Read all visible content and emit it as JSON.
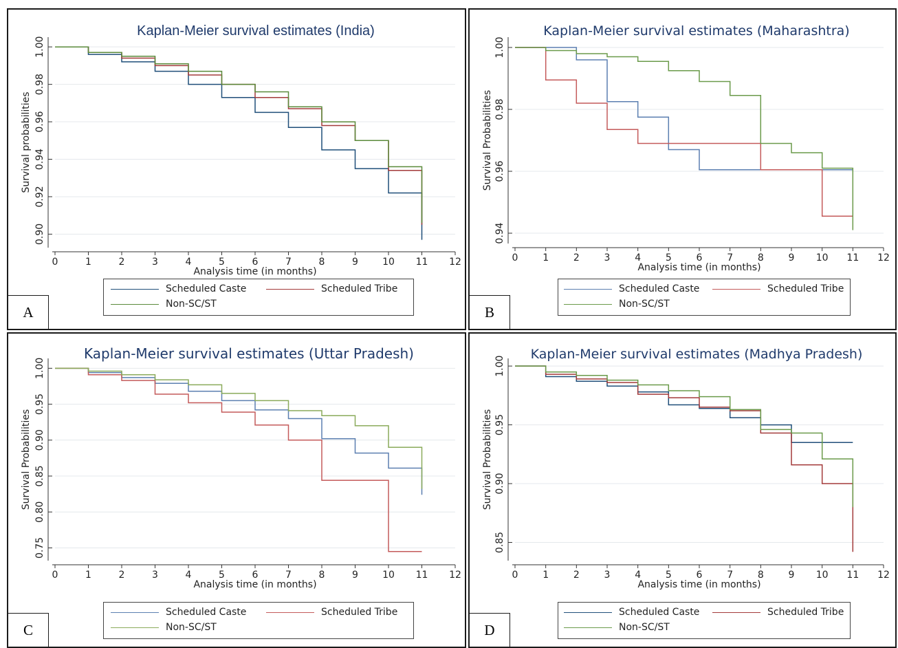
{
  "chart_data": [
    {
      "panel_label": "A",
      "type": "line",
      "title": "Kaplan-Meier survival estimates (India)",
      "xlabel": "Analysis time (in months)",
      "ylabel": "Survival probabilities",
      "xlim": [
        0,
        12
      ],
      "ylim": [
        0.895,
        1.003
      ],
      "xticks": [
        0,
        1,
        2,
        3,
        4,
        5,
        6,
        7,
        8,
        9,
        10,
        11,
        12
      ],
      "yticks": [
        0.9,
        0.92,
        0.94,
        0.96,
        0.98,
        1.0
      ],
      "ytick_labels": [
        "0.90",
        "0.92",
        "0.94",
        "0.96",
        "0.98",
        "1.00"
      ],
      "grid": true,
      "legend_position": "bottom",
      "x": [
        0,
        1,
        2,
        3,
        4,
        5,
        6,
        7,
        8,
        9,
        10,
        11
      ],
      "series": [
        {
          "name": "Scheduled Caste",
          "color": "#1f4e79",
          "values": [
            1.0,
            0.996,
            0.992,
            0.987,
            0.98,
            0.973,
            0.965,
            0.957,
            0.945,
            0.935,
            0.922,
            0.897
          ]
        },
        {
          "name": "Scheduled Tribe",
          "color": "#a33a3a",
          "values": [
            1.0,
            0.997,
            0.994,
            0.99,
            0.985,
            0.98,
            0.973,
            0.967,
            0.958,
            0.95,
            0.934,
            0.905
          ]
        },
        {
          "name": "Non-SC/ST",
          "color": "#5a8a3a",
          "values": [
            1.0,
            0.997,
            0.995,
            0.991,
            0.987,
            0.98,
            0.976,
            0.968,
            0.96,
            0.95,
            0.936,
            0.906
          ]
        }
      ]
    },
    {
      "panel_label": "B",
      "type": "line",
      "title": "Kaplan-Meier survival estimates (Maharashtra)",
      "xlabel": "Analysis time (in months)",
      "ylabel": "Survival Probabilities",
      "xlim": [
        0,
        12
      ],
      "ylim": [
        0.938,
        1.002
      ],
      "xticks": [
        0,
        1,
        2,
        3,
        4,
        5,
        6,
        7,
        8,
        9,
        10,
        11,
        12
      ],
      "yticks": [
        0.94,
        0.96,
        0.98,
        1.0
      ],
      "ytick_labels": [
        "0.94",
        "0.96",
        "0.98",
        "1.00"
      ],
      "grid": true,
      "legend_position": "bottom",
      "x": [
        0,
        1,
        2,
        3,
        4,
        5,
        6,
        7,
        8,
        9,
        10,
        11
      ],
      "series": [
        {
          "name": "Scheduled Caste",
          "color": "#5b7fb0",
          "values": [
            1.0,
            1.0,
            0.996,
            0.9825,
            0.9775,
            0.967,
            0.9605,
            0.9605,
            0.9605,
            0.9605,
            0.9605,
            0.9605
          ]
        },
        {
          "name": "Scheduled Tribe",
          "color": "#c45a5a",
          "values": [
            1.0,
            0.9895,
            0.982,
            0.9735,
            0.969,
            0.969,
            0.969,
            0.969,
            0.9605,
            0.9605,
            0.9455,
            0.9455
          ]
        },
        {
          "name": "Non-SC/ST",
          "color": "#6a9a4a",
          "values": [
            1.0,
            0.999,
            0.998,
            0.997,
            0.9955,
            0.9925,
            0.989,
            0.9845,
            0.969,
            0.966,
            0.961,
            0.941
          ]
        }
      ]
    },
    {
      "panel_label": "C",
      "type": "line",
      "title": "Kaplan-Meier survival estimates (Uttar Pradesh)",
      "xlabel": "Analysis time (in months)",
      "ylabel": "Survival Probabilities",
      "xlim": [
        0,
        12
      ],
      "ylim": [
        0.738,
        1.008
      ],
      "xticks": [
        0,
        1,
        2,
        3,
        4,
        5,
        6,
        7,
        8,
        9,
        10,
        11,
        12
      ],
      "yticks": [
        0.75,
        0.8,
        0.85,
        0.9,
        0.95,
        1.0
      ],
      "ytick_labels": [
        "0.75",
        "0.80",
        "0.85",
        "0.90",
        "0.95",
        "1.00"
      ],
      "grid": true,
      "legend_position": "bottom",
      "x": [
        0,
        1,
        2,
        3,
        4,
        5,
        6,
        7,
        8,
        9,
        10,
        11
      ],
      "series": [
        {
          "name": "Scheduled Caste",
          "color": "#5b7fb0",
          "values": [
            1.0,
            0.994,
            0.987,
            0.979,
            0.968,
            0.955,
            0.942,
            0.93,
            0.902,
            0.882,
            0.861,
            0.824
          ]
        },
        {
          "name": "Scheduled Tribe",
          "color": "#c45a5a",
          "values": [
            1.0,
            0.991,
            0.983,
            0.964,
            0.952,
            0.939,
            0.921,
            0.9,
            0.844,
            0.844,
            0.745,
            0.745
          ]
        },
        {
          "name": "Non-SC/ST",
          "color": "#8aaa5a",
          "values": [
            1.0,
            0.996,
            0.991,
            0.984,
            0.977,
            0.965,
            0.955,
            0.941,
            0.934,
            0.92,
            0.89,
            0.832
          ]
        }
      ]
    },
    {
      "panel_label": "D",
      "type": "line",
      "title": "Kaplan-Meier survival estimates (Madhya Pradesh)",
      "xlabel": "Analysis time (in months)",
      "ylabel": "Survival Probabilities",
      "xlim": [
        0,
        12
      ],
      "ylim": [
        0.838,
        1.003
      ],
      "xticks": [
        0,
        1,
        2,
        3,
        4,
        5,
        6,
        7,
        8,
        9,
        10,
        11,
        12
      ],
      "yticks": [
        0.85,
        0.9,
        0.95,
        1.0
      ],
      "ytick_labels": [
        "0.85",
        "0.90",
        "0.95",
        "1.00"
      ],
      "grid": true,
      "legend_position": "bottom",
      "x": [
        0,
        1,
        2,
        3,
        4,
        5,
        6,
        7,
        8,
        9,
        10,
        11
      ],
      "series": [
        {
          "name": "Scheduled Caste",
          "color": "#1f4e79",
          "values": [
            1.0,
            0.991,
            0.987,
            0.983,
            0.978,
            0.967,
            0.964,
            0.956,
            0.95,
            0.935,
            0.935,
            0.935
          ]
        },
        {
          "name": "Scheduled Tribe",
          "color": "#a33a3a",
          "values": [
            1.0,
            0.993,
            0.989,
            0.986,
            0.976,
            0.973,
            0.965,
            0.962,
            0.943,
            0.916,
            0.9,
            0.842
          ]
        },
        {
          "name": "Non-SC/ST",
          "color": "#6a9a4a",
          "values": [
            1.0,
            0.995,
            0.992,
            0.988,
            0.984,
            0.979,
            0.974,
            0.963,
            0.946,
            0.943,
            0.921,
            0.88
          ]
        }
      ]
    }
  ]
}
